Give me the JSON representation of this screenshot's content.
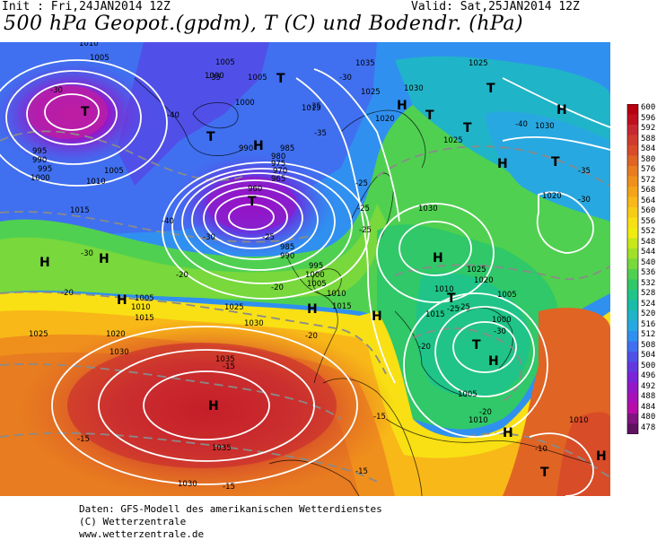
{
  "header": {
    "init": "Init : Fri,24JAN2014 12Z",
    "valid": "Valid: Sat,25JAN2014 12Z",
    "title": "500 hPa Geopot.(gpdm), T (C) und Bodendr. (hPa)"
  },
  "colorbar": {
    "labels": [
      "600",
      "596",
      "592",
      "588",
      "584",
      "580",
      "576",
      "572",
      "568",
      "564",
      "560",
      "556",
      "552",
      "548",
      "544",
      "540",
      "536",
      "532",
      "528",
      "524",
      "520",
      "516",
      "512",
      "508",
      "504",
      "500",
      "496",
      "492",
      "488",
      "484",
      "480",
      "478"
    ],
    "colors": [
      "#b80010",
      "#c01020",
      "#c82830",
      "#d03c2c",
      "#d84c28",
      "#e06424",
      "#e87c20",
      "#f0901c",
      "#f4a418",
      "#f8b818",
      "#f8cc14",
      "#f8e014",
      "#f0ec10",
      "#c8e818",
      "#a0e028",
      "#78d83c",
      "#50d050",
      "#30c868",
      "#20c488",
      "#18bca8",
      "#20b4c8",
      "#28a8e0",
      "#3090f0",
      "#4070f0",
      "#5050e8",
      "#6438e0",
      "#7c24d8",
      "#9418c8",
      "#a810b8",
      "#b80ca8",
      "#801480",
      "#601060"
    ]
  },
  "map_labels": {
    "highs": [
      "H",
      "H",
      "H",
      "H",
      "H",
      "H",
      "H",
      "H",
      "H",
      "H",
      "H",
      "H",
      "H",
      "H"
    ],
    "lows": [
      "T",
      "T",
      "T",
      "T",
      "T",
      "T",
      "T",
      "T",
      "T",
      "T",
      "T"
    ],
    "isobars": [
      "1010",
      "1005",
      "1005",
      "1000",
      "995",
      "990",
      "995",
      "1000",
      "1005",
      "1010",
      "1015",
      "1005",
      "1000",
      "1015",
      "990",
      "985",
      "980",
      "975",
      "970",
      "965",
      "960",
      "985",
      "990",
      "995",
      "1000",
      "1005",
      "1010",
      "1015",
      "1035",
      "1030",
      "1025",
      "1020",
      "1025",
      "1030",
      "1025",
      "1030",
      "1020",
      "1025",
      "1020",
      "1010",
      "1005",
      "1000",
      "1005",
      "1015",
      "1025",
      "1030",
      "1020",
      "1025",
      "1030",
      "1035",
      "1030",
      "1035",
      "1005",
      "1010",
      "1015",
      "1010",
      "1010"
    ],
    "temps": [
      "-30",
      "-40",
      "-35",
      "-35",
      "-30",
      "-35",
      "-40",
      "-30",
      "-30",
      "-25",
      "-20",
      "-20",
      "-25",
      "-25",
      "-25",
      "-20",
      "-20",
      "-15",
      "-15",
      "-15",
      "-15",
      "-10",
      "-40",
      "-35",
      "-30",
      "-25",
      "-20",
      "-15",
      "-20",
      "-25",
      "-30"
    ]
  },
  "footer": {
    "line1": "Daten: GFS-Modell des amerikanischen Wetterdienstes",
    "line2": "(C) Wetterzentrale",
    "line3": "www.wetterzentrale.de"
  }
}
